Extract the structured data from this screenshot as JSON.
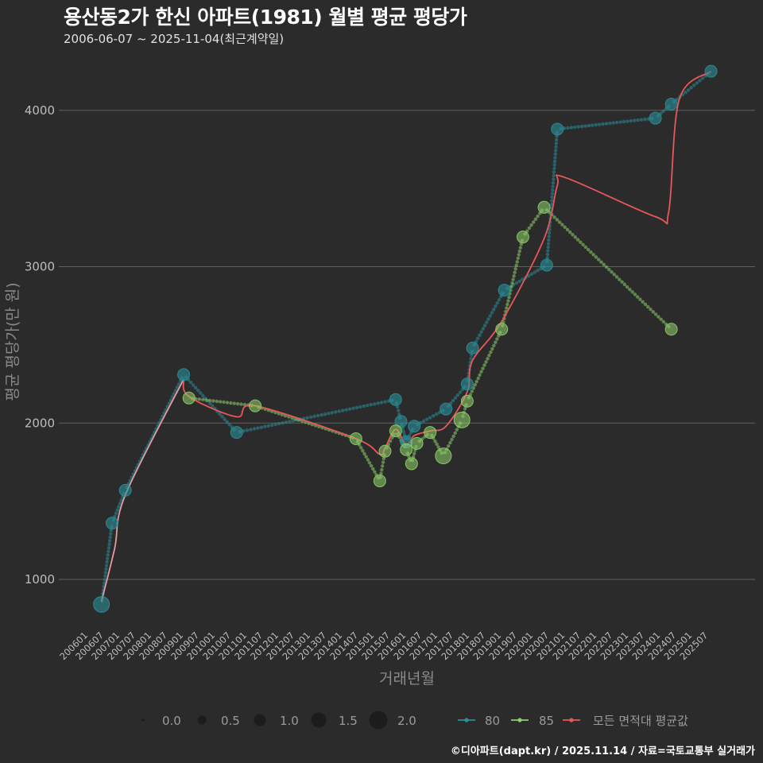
{
  "title": "용산동2가 한신 아파트(1981) 월별 평균 평당가",
  "subtitle": "2006-06-07 ~ 2025-11-04(최근계약일)",
  "caption": "©디아파트(dapt.kr) / 2025.11.14 / 자료=국토교통부 실거래가",
  "colors": {
    "background": "#2b2b2b",
    "grid": "#5f5f5f",
    "s80": "#2a8f9a",
    "s85": "#8fd16a",
    "avg": "#e8575c",
    "avg_early": "#e59aa0"
  },
  "chart_data": {
    "type": "line",
    "xlabel": "거래년월",
    "ylabel": "평균 평당가(만 원)",
    "x_range": [
      "2006-01",
      "2025-12"
    ],
    "ylim": [
      700,
      4350
    ],
    "y_ticks": [
      1000,
      2000,
      3000,
      4000
    ],
    "x_tick_labels": [
      "200601",
      "200607",
      "200701",
      "200707",
      "200801",
      "200807",
      "200901",
      "200907",
      "201001",
      "201007",
      "201101",
      "201107",
      "201201",
      "201207",
      "201301",
      "201307",
      "201401",
      "201407",
      "201501",
      "201507",
      "201601",
      "201607",
      "201701",
      "201707",
      "201801",
      "201807",
      "201901",
      "201907",
      "202001",
      "202007",
      "202101",
      "202107",
      "202201",
      "202207",
      "202301",
      "202307",
      "202401",
      "202407",
      "202501",
      "202507"
    ],
    "series": [
      {
        "name": "80",
        "points": [
          {
            "x": "2006-06",
            "y": 840,
            "n": 2
          },
          {
            "x": "2006-10",
            "y": 1360,
            "n": 1
          },
          {
            "x": "2007-03",
            "y": 1570,
            "n": 1
          },
          {
            "x": "2009-01",
            "y": 2310,
            "n": 1
          },
          {
            "x": "2010-09",
            "y": 1940,
            "n": 1
          },
          {
            "x": "2015-09",
            "y": 2150,
            "n": 1
          },
          {
            "x": "2015-11",
            "y": 2010,
            "n": 1
          },
          {
            "x": "2016-01",
            "y": 1880,
            "n": 1
          },
          {
            "x": "2016-04",
            "y": 1980,
            "n": 1
          },
          {
            "x": "2017-04",
            "y": 2090,
            "n": 1
          },
          {
            "x": "2017-12",
            "y": 2250,
            "n": 1
          },
          {
            "x": "2018-02",
            "y": 2480,
            "n": 1
          },
          {
            "x": "2019-02",
            "y": 2850,
            "n": 1
          },
          {
            "x": "2020-06",
            "y": 3010,
            "n": 1
          },
          {
            "x": "2020-10",
            "y": 3880,
            "n": 1
          },
          {
            "x": "2023-11",
            "y": 3950,
            "n": 1
          },
          {
            "x": "2024-05",
            "y": 4040,
            "n": 1
          },
          {
            "x": "2025-08",
            "y": 4250,
            "n": 1
          }
        ]
      },
      {
        "name": "85",
        "points": [
          {
            "x": "2009-03",
            "y": 2160,
            "n": 1
          },
          {
            "x": "2011-04",
            "y": 2110,
            "n": 1
          },
          {
            "x": "2014-06",
            "y": 1900,
            "n": 1
          },
          {
            "x": "2015-03",
            "y": 1630,
            "n": 1
          },
          {
            "x": "2015-05",
            "y": 1820,
            "n": 1
          },
          {
            "x": "2015-09",
            "y": 1950,
            "n": 1
          },
          {
            "x": "2016-01",
            "y": 1830,
            "n": 1
          },
          {
            "x": "2016-03",
            "y": 1740,
            "n": 1
          },
          {
            "x": "2016-05",
            "y": 1870,
            "n": 1
          },
          {
            "x": "2016-10",
            "y": 1940,
            "n": 1
          },
          {
            "x": "2017-03",
            "y": 1790,
            "n": 2
          },
          {
            "x": "2017-10",
            "y": 2020,
            "n": 2
          },
          {
            "x": "2017-12",
            "y": 2140,
            "n": 1
          },
          {
            "x": "2019-01",
            "y": 2600,
            "n": 1
          },
          {
            "x": "2019-09",
            "y": 3190,
            "n": 1
          },
          {
            "x": "2020-05",
            "y": 3380,
            "n": 1
          },
          {
            "x": "2024-05",
            "y": 2600,
            "n": 1
          }
        ]
      },
      {
        "name": "모든 면적대 평균값",
        "points": [
          {
            "x": "2006-06",
            "y": 860
          },
          {
            "x": "2006-11",
            "y": 1200
          },
          {
            "x": "2007-03",
            "y": 1540
          },
          {
            "x": "2009-01",
            "y": 2280
          },
          {
            "x": "2009-03",
            "y": 2170
          },
          {
            "x": "2010-09",
            "y": 2040
          },
          {
            "x": "2011-04",
            "y": 2110
          },
          {
            "x": "2014-06",
            "y": 1900
          },
          {
            "x": "2015-03",
            "y": 1800
          },
          {
            "x": "2015-05",
            "y": 1840
          },
          {
            "x": "2015-09",
            "y": 1960
          },
          {
            "x": "2016-01",
            "y": 1860
          },
          {
            "x": "2016-04",
            "y": 1920
          },
          {
            "x": "2016-10",
            "y": 1950
          },
          {
            "x": "2017-04",
            "y": 1980
          },
          {
            "x": "2017-12",
            "y": 2200
          },
          {
            "x": "2018-02",
            "y": 2400
          },
          {
            "x": "2019-01",
            "y": 2650
          },
          {
            "x": "2020-05",
            "y": 3180
          },
          {
            "x": "2020-10",
            "y": 3520
          },
          {
            "x": "2021-01",
            "y": 3570
          },
          {
            "x": "2023-11",
            "y": 3320
          },
          {
            "x": "2024-04",
            "y": 3350
          },
          {
            "x": "2024-08",
            "y": 4070
          },
          {
            "x": "2025-08",
            "y": 4250
          }
        ]
      }
    ],
    "size_legend": {
      "values": [
        "0.0",
        "0.5",
        "1.0",
        "1.5",
        "2.0"
      ]
    },
    "color_legend": [
      "80",
      "85",
      "모든 면적대 평균값"
    ]
  }
}
